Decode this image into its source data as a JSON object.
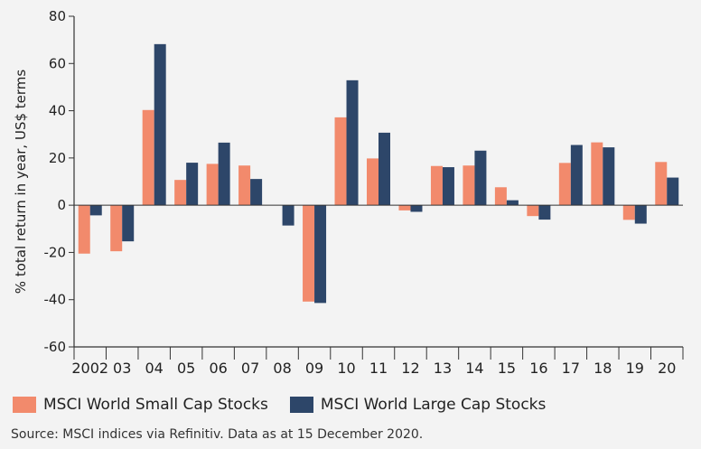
{
  "chart_data": {
    "type": "bar",
    "title": "",
    "xlabel": "",
    "ylabel": "% total return in year, US$ terms",
    "ylim": [
      -60,
      80
    ],
    "yticks": [
      -60,
      -40,
      -20,
      0,
      20,
      40,
      60,
      80
    ],
    "ytick_labels": [
      "-60",
      "-40",
      "-20",
      "0",
      "20",
      "40",
      "60",
      "80"
    ],
    "categories": [
      "2002",
      "03",
      "04",
      "05",
      "06",
      "07",
      "08",
      "09",
      "10",
      "11",
      "12",
      "13",
      "14",
      "15",
      "16",
      "17",
      "18",
      "19",
      "20"
    ],
    "series": [
      {
        "name": "MSCI World Small Cap Stocks",
        "color": "#f28a6c",
        "values": [
          -20.5,
          -19.5,
          40.3,
          10.7,
          17.5,
          16.8,
          0,
          -40.8,
          37.2,
          19.8,
          -2.2,
          16.6,
          16.8,
          7.6,
          -4.6,
          17.9,
          26.6,
          -6.2,
          18.3
        ]
      },
      {
        "name": "MSCI World Large Cap Stocks",
        "color": "#2d4669",
        "values": [
          -4.3,
          -15.3,
          68.2,
          18.0,
          26.5,
          11.1,
          -8.6,
          -41.4,
          52.9,
          30.7,
          -2.8,
          16.1,
          23.1,
          2.1,
          -6.1,
          25.5,
          24.5,
          -7.8,
          11.7
        ]
      }
    ],
    "grid": false,
    "legend_position": "bottom-left"
  },
  "source": "Source: MSCI indices via Refinitiv. Data as at 15 December 2020."
}
